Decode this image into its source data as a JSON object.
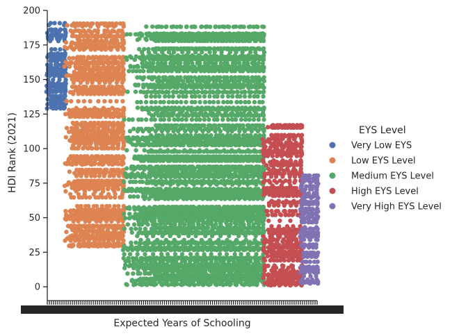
{
  "chart_data": {
    "type": "scatter",
    "xlabel": "Expected Years of Schooling",
    "ylabel": "HDI Rank (2021)",
    "ylim": [
      -10,
      200
    ],
    "y_ticks": [
      0,
      25,
      50,
      75,
      100,
      125,
      150,
      175,
      200
    ],
    "x_tick_labels_overlapping": true,
    "grid": false,
    "legend": {
      "title": "EYS Level",
      "placement": "right"
    },
    "series": [
      {
        "name": "Very Low EYS",
        "color": "#4c72b0",
        "x_band": [
          0.0,
          0.065
        ],
        "y_range": [
          127,
          191
        ]
      },
      {
        "name": "Low EYS Level",
        "color": "#dd8452",
        "x_band": [
          0.065,
          0.28
        ],
        "y_range": [
          29,
          191
        ]
      },
      {
        "name": "Medium EYS Level",
        "color": "#55a868",
        "x_band": [
          0.28,
          0.8
        ],
        "y_range": [
          1,
          191
        ]
      },
      {
        "name": "High EYS Level",
        "color": "#c44e52",
        "x_band": [
          0.8,
          0.94
        ],
        "y_range": [
          1,
          118
        ]
      },
      {
        "name": "Very High EYS Level",
        "color": "#8172b3",
        "x_band": [
          0.94,
          1.0
        ],
        "y_range": [
          1,
          83
        ]
      }
    ]
  }
}
